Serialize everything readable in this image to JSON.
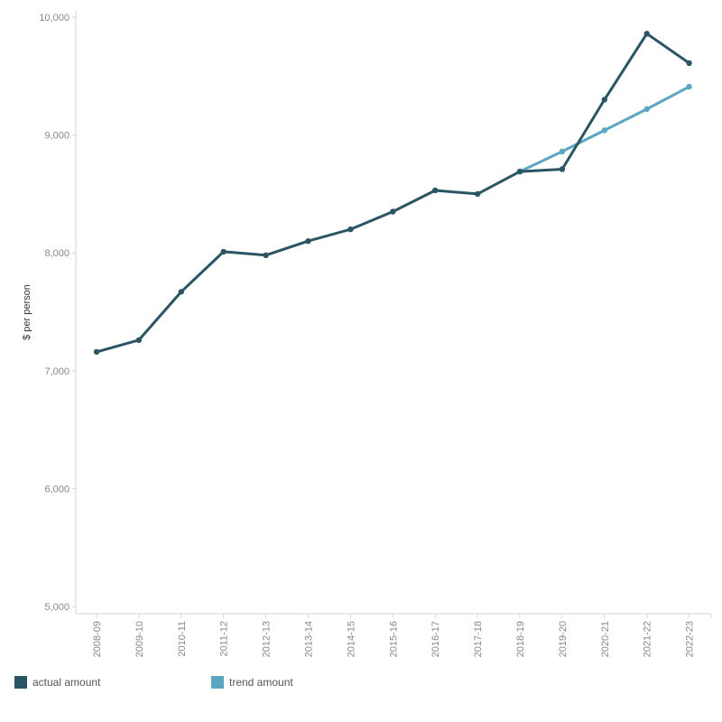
{
  "chart_data": {
    "type": "line",
    "title": "",
    "xlabel": "",
    "ylabel": "$ per person",
    "ylim": [
      5000,
      10000
    ],
    "yticks": [
      5000,
      6000,
      7000,
      8000,
      9000,
      10000
    ],
    "ytick_labels": [
      "5,000",
      "6,000",
      "7,000",
      "8,000",
      "9,000",
      "10,000"
    ],
    "categories": [
      "2008-09",
      "2009-10",
      "2010-11",
      "2011-12",
      "2012-13",
      "2013-14",
      "2014-15",
      "2015-16",
      "2016-17",
      "2017-18",
      "2018-19",
      "2019-20",
      "2020-21",
      "2021-22",
      "2022-23"
    ],
    "series": [
      {
        "name": "actual amount",
        "color": "#2a5564",
        "values": [
          7160,
          7260,
          7670,
          8010,
          7980,
          8100,
          8200,
          8350,
          8530,
          8500,
          8690,
          8710,
          9300,
          9860,
          9610
        ]
      },
      {
        "name": "trend amount",
        "color": "#5ba7c2",
        "values": [
          null,
          null,
          null,
          null,
          null,
          null,
          null,
          null,
          null,
          null,
          8690,
          8860,
          9040,
          9220,
          9410
        ]
      }
    ],
    "legend_position": "bottom",
    "grid": false
  }
}
